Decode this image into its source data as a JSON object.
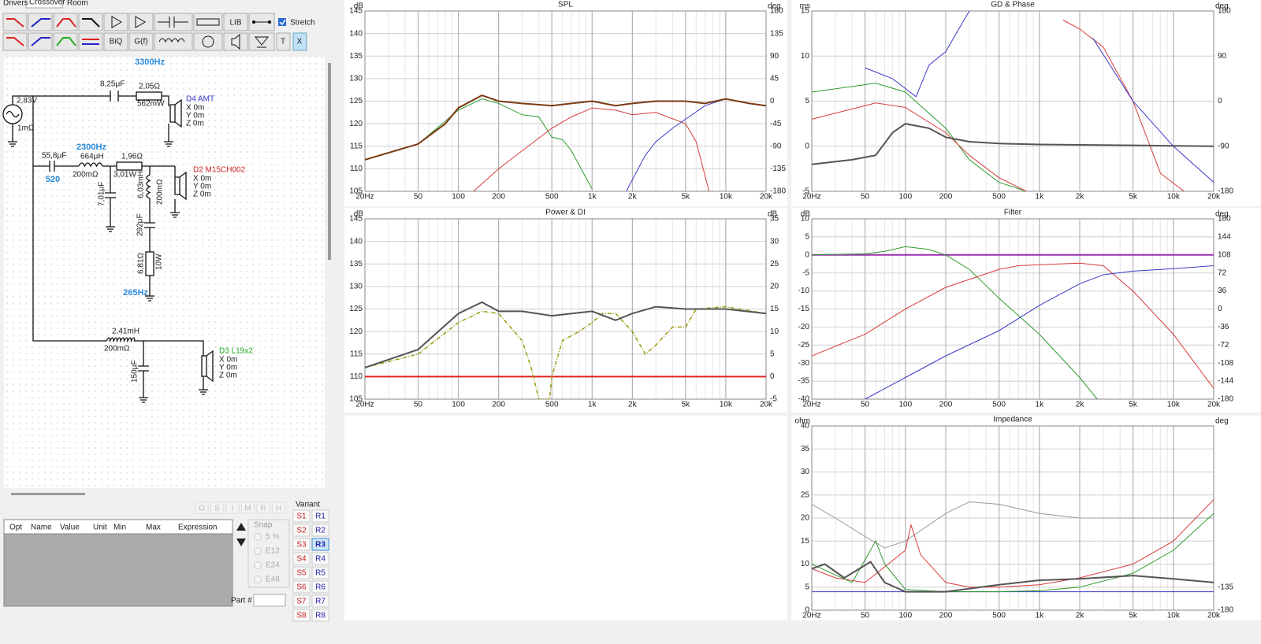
{
  "tabs": [
    "Drivers",
    "Crossover",
    "Room"
  ],
  "toolbar": {
    "lib": "LIB",
    "biq": "BiQ",
    "gf": "G(f)",
    "stretch": "Stretch",
    "t": "T",
    "x": "X"
  },
  "schematic": {
    "hz_top": "3300Hz",
    "source_v": "2,83V",
    "source_r": "1mΩ",
    "c1": "8,25μF",
    "r1": "2,05Ω",
    "r1_p": "562mW",
    "d4": {
      "name": "D4 AMT",
      "x": "X 0m",
      "y": "Y 0m",
      "z": "Z 0m"
    },
    "hz_mid": "2300Hz",
    "c2": "55,8μF",
    "l1": "664μH",
    "l1_r": "200mΩ",
    "r2": "1,96Ω",
    "r2_p": "3,01W",
    "q": "520",
    "c3": "7,01μF",
    "l2": "6,03mH",
    "l2_r": "200mΩ",
    "c4": "292μF",
    "r3": "6,81Ω",
    "r3_p": "10W",
    "d2": {
      "name": "D2 M15CH002",
      "x": "X 0m",
      "y": "Y 0m",
      "z": "Z 0m"
    },
    "hz_low": "265Hz",
    "l3": "2,41mH",
    "l3_r": "200mΩ",
    "c5": "150μF",
    "d3": {
      "name": "D3 L19x2",
      "x": "X 0m",
      "y": "Y 0m",
      "z": "Z 0m"
    }
  },
  "modes": [
    "O",
    "S",
    "I",
    "M",
    "R",
    "H"
  ],
  "optimizer": {
    "columns": [
      "Opt",
      "Name",
      "Value",
      "Unit",
      "Min",
      "Max",
      "Expression"
    ]
  },
  "snap": {
    "title": "Snap",
    "options": [
      "5 %",
      "E12",
      "E24",
      "E48"
    ]
  },
  "variant": {
    "title": "Variant",
    "s": [
      "S1",
      "S2",
      "S3",
      "S4",
      "S5",
      "S6",
      "S7",
      "S8"
    ],
    "r": [
      "R1",
      "R2",
      "R3",
      "R4",
      "R5",
      "R6",
      "R7",
      "R8"
    ],
    "selected": "R3"
  },
  "part": "Part #",
  "chart_data": [
    {
      "type": "line",
      "title": "SPL",
      "y_unit": "dB",
      "y2_unit": "deg",
      "xscale": "log",
      "grid": true,
      "xlim": [
        20,
        20000
      ],
      "xticks": [
        {
          "value": 20,
          "label": "20Hz"
        },
        50,
        100,
        200,
        500,
        {
          "value": 1000,
          "label": "1k"
        },
        {
          "value": 2000,
          "label": "2k"
        },
        {
          "value": 5000,
          "label": "5k"
        },
        {
          "value": 10000,
          "label": "10k"
        },
        {
          "value": 20000,
          "label": "20k"
        }
      ],
      "ylim": [
        105,
        145
      ],
      "yticks": [
        105,
        110,
        115,
        120,
        125,
        130,
        135,
        140,
        145
      ],
      "y2lim": [
        -180,
        180
      ],
      "y2ticks": [
        -180,
        -135,
        -90,
        -45,
        0,
        45,
        90,
        135,
        180
      ],
      "series": [
        {
          "color": "#2e9a2e",
          "width": 1,
          "x": [
            20,
            50,
            100,
            150,
            200,
            300,
            400,
            500,
            600,
            700,
            1000
          ],
          "values": [
            112,
            115.5,
            123,
            125.5,
            124.5,
            122,
            121.5,
            117,
            116.5,
            114,
            105.5
          ]
        },
        {
          "color": "#d83a3a",
          "width": 1,
          "x": [
            130,
            200,
            300,
            500,
            700,
            1000,
            1500,
            2000,
            3000,
            5000,
            6000,
            7500
          ],
          "values": [
            105,
            110,
            114,
            119,
            121.5,
            123.5,
            123,
            122,
            122.5,
            120,
            116,
            105
          ]
        },
        {
          "color": "#3a3ac8",
          "width": 1,
          "x": [
            1800,
            2500,
            3000,
            4000,
            5000,
            7000,
            10000,
            15000,
            20000
          ],
          "values": [
            105,
            113,
            116,
            119,
            121,
            124,
            125.5,
            124.5,
            124
          ]
        },
        {
          "color": "#7a3a12",
          "width": 2,
          "x": [
            20,
            50,
            80,
            100,
            150,
            200,
            300,
            500,
            700,
            1000,
            1500,
            2000,
            3000,
            5000,
            7000,
            10000,
            15000,
            20000
          ],
          "values": [
            112,
            115.5,
            120,
            123.5,
            126.3,
            125,
            124.5,
            124,
            124.5,
            125,
            124,
            124.5,
            125,
            125,
            124.5,
            125.5,
            124.5,
            124
          ]
        }
      ]
    },
    {
      "type": "line",
      "title": "GD & Phase",
      "y_unit": "ms",
      "y2_unit": "deg",
      "xscale": "log",
      "grid": true,
      "xlim": [
        20,
        20000
      ],
      "xticks": [
        {
          "value": 20,
          "label": "20Hz"
        },
        50,
        100,
        200,
        500,
        {
          "value": 1000,
          "label": "1k"
        },
        {
          "value": 2000,
          "label": "2k"
        },
        {
          "value": 5000,
          "label": "5k"
        },
        {
          "value": 10000,
          "label": "10k"
        },
        {
          "value": 20000,
          "label": "20k"
        }
      ],
      "ylim": [
        -5,
        15
      ],
      "yticks": [
        -5,
        0,
        5,
        10,
        15
      ],
      "y2lim": [
        -180,
        180
      ],
      "y2ticks": [
        -180,
        -90,
        0,
        90,
        180
      ],
      "series": [
        {
          "color": "#2e9a2e",
          "width": 1,
          "x": [
            20,
            60,
            100,
            200,
            300,
            500,
            800
          ],
          "values": [
            6,
            7,
            6,
            2,
            -1.5,
            -4,
            -5
          ]
        },
        {
          "color": "#d83a3a",
          "width": 1,
          "x": [
            20,
            60,
            100,
            200,
            300,
            500,
            800,
            1000,
            1500,
            2000,
            3000,
            5000,
            8000,
            12000
          ],
          "values": [
            3,
            4.8,
            4.3,
            1.5,
            -1,
            -3.5,
            -5,
            null,
            14,
            13,
            11,
            5,
            -3,
            -5
          ]
        },
        {
          "color": "#3a3ac8",
          "width": 1,
          "x": [
            50,
            80,
            120,
            150,
            200,
            250,
            300,
            1700,
            2500,
            5000,
            10000,
            20000
          ],
          "values": [
            8.7,
            7.5,
            5.5,
            9,
            10.5,
            13,
            15,
            null,
            12,
            5,
            0,
            -4
          ]
        },
        {
          "color": "#555555",
          "width": 2,
          "x": [
            20,
            40,
            60,
            80,
            100,
            150,
            200,
            300,
            500,
            1000,
            5000,
            20000
          ],
          "values": [
            -2,
            -1.5,
            -1,
            1.5,
            2.5,
            2,
            1,
            0.5,
            0.3,
            0.2,
            0.1,
            0
          ]
        }
      ]
    },
    {
      "type": "line",
      "title": "Power & DI",
      "y_unit": "dB",
      "y2_unit": "dB",
      "xscale": "log",
      "grid": true,
      "xlim": [
        20,
        20000
      ],
      "xticks": [
        {
          "value": 20,
          "label": "20Hz"
        },
        50,
        100,
        200,
        500,
        {
          "value": 1000,
          "label": "1k"
        },
        {
          "value": 2000,
          "label": "2k"
        },
        {
          "value": 5000,
          "label": "5k"
        },
        {
          "value": 10000,
          "label": "10k"
        },
        {
          "value": 20000,
          "label": "20k"
        }
      ],
      "ylim": [
        105,
        145
      ],
      "yticks": [
        105,
        110,
        115,
        120,
        125,
        130,
        135,
        140,
        145
      ],
      "y2lim": [
        -5,
        35
      ],
      "y2ticks": [
        -5,
        0,
        5,
        10,
        15,
        20,
        25,
        30,
        35
      ],
      "series": [
        {
          "color": "#e02020",
          "width": 2,
          "x": [
            20,
            20000
          ],
          "values": [
            110,
            110
          ]
        },
        {
          "color": "#9a9a10",
          "width": 1.5,
          "dash": true,
          "x": [
            20,
            50,
            100,
            150,
            200,
            300,
            350,
            400,
            480,
            500,
            600,
            800,
            1000,
            1200,
            1500,
            2000,
            2500,
            3000,
            4000,
            5000,
            6000,
            10000,
            20000
          ],
          "values": [
            112,
            115,
            122,
            124.5,
            124,
            118,
            112,
            105,
            105,
            110,
            118,
            120,
            122,
            124,
            124,
            120,
            115,
            117,
            121,
            121,
            125,
            125.5,
            124
          ]
        },
        {
          "color": "#555555",
          "width": 2,
          "x": [
            20,
            50,
            100,
            150,
            200,
            300,
            500,
            700,
            1000,
            1500,
            2000,
            3000,
            5000,
            10000,
            20000
          ],
          "values": [
            112,
            116,
            124,
            126.5,
            124.5,
            124.5,
            123.5,
            124,
            124.5,
            122.5,
            124,
            125.5,
            125,
            125,
            124
          ]
        }
      ]
    },
    {
      "type": "line",
      "title": "Filter",
      "y_unit": "dB",
      "y2_unit": "deg",
      "xscale": "log",
      "grid": true,
      "xlim": [
        20,
        20000
      ],
      "xticks": [
        {
          "value": 20,
          "label": "20Hz"
        },
        50,
        100,
        200,
        500,
        {
          "value": 1000,
          "label": "1k"
        },
        {
          "value": 2000,
          "label": "2k"
        },
        {
          "value": 5000,
          "label": "5k"
        },
        {
          "value": 10000,
          "label": "10k"
        },
        {
          "value": 20000,
          "label": "20k"
        }
      ],
      "ylim": [
        -40,
        10
      ],
      "yticks": [
        -40,
        -35,
        -30,
        -25,
        -20,
        -15,
        -10,
        -5,
        0,
        5,
        10
      ],
      "y2lim": [
        -180,
        180
      ],
      "y2ticks": [
        -180,
        -144,
        -108,
        -72,
        -36,
        0,
        36,
        72,
        108,
        144,
        180
      ],
      "series": [
        {
          "color": "#9a30b0",
          "width": 2,
          "x": [
            20,
            20000
          ],
          "values": [
            0,
            0
          ]
        },
        {
          "color": "#2e9a2e",
          "width": 1,
          "x": [
            20,
            50,
            70,
            100,
            150,
            200,
            300,
            500,
            1000,
            2000,
            2700
          ],
          "values": [
            0,
            0.3,
            1,
            2.3,
            1.5,
            0,
            -4,
            -12,
            -22,
            -34,
            -40
          ]
        },
        {
          "color": "#d83a3a",
          "width": 1,
          "x": [
            20,
            50,
            100,
            200,
            500,
            700,
            1000,
            2000,
            3000,
            5000,
            10000,
            20000
          ],
          "values": [
            -28,
            -22,
            -15,
            -9,
            -4,
            -3,
            -2.7,
            -2.3,
            -3,
            -10,
            -22,
            -37
          ]
        },
        {
          "color": "#3a3ac8",
          "width": 1,
          "x": [
            50,
            100,
            200,
            500,
            1000,
            2000,
            3000,
            5000,
            10000,
            20000
          ],
          "values": [
            -40,
            -34,
            -28,
            -21,
            -14,
            -8,
            -5.5,
            -4.5,
            -3.8,
            -3
          ]
        }
      ]
    },
    {
      "type": "line",
      "title": "Impedance",
      "y_unit": "ohm",
      "y2_unit": "deg",
      "xscale": "log",
      "grid": true,
      "xlim": [
        20,
        20000
      ],
      "xticks": [
        {
          "value": 20,
          "label": "20Hz"
        },
        50,
        100,
        200,
        500,
        {
          "value": 1000,
          "label": "1k"
        },
        {
          "value": 2000,
          "label": "2k"
        },
        {
          "value": 5000,
          "label": "5k"
        },
        {
          "value": 10000,
          "label": "10k"
        },
        {
          "value": 20000,
          "label": "20k"
        }
      ],
      "ylim": [
        0,
        40
      ],
      "yticks": [
        0,
        5,
        10,
        15,
        20,
        25,
        30,
        35,
        40
      ],
      "y2lim": [
        -180,
        180
      ],
      "y2ticks": [
        -180,
        -135
      ],
      "series": [
        {
          "color": "#3a3ac8",
          "width": 1,
          "x": [
            20,
            20000
          ],
          "values": [
            4,
            4
          ]
        },
        {
          "color": "#999999",
          "width": 1,
          "x": [
            20,
            30,
            50,
            70,
            100,
            200,
            300,
            500,
            1000,
            2000,
            5000,
            20000
          ],
          "values": [
            23,
            20,
            16,
            13.5,
            15,
            21,
            23.5,
            23,
            21,
            20,
            20,
            20
          ]
        },
        {
          "color": "#d83a3a",
          "width": 1,
          "x": [
            20,
            30,
            50,
            100,
            110,
            130,
            200,
            300,
            500,
            1000,
            2000,
            5000,
            10000,
            20000
          ],
          "values": [
            9,
            7,
            6,
            13,
            18.5,
            12,
            6,
            5,
            5,
            5.5,
            7,
            10,
            15,
            24
          ]
        },
        {
          "color": "#2e9a2e",
          "width": 1,
          "x": [
            20,
            40,
            60,
            70,
            100,
            200,
            500,
            1000,
            2000,
            5000,
            10000,
            20000
          ],
          "values": [
            10,
            6,
            15,
            10,
            4.5,
            4,
            4,
            4.2,
            5,
            8,
            13,
            21
          ]
        },
        {
          "color": "#555555",
          "width": 2,
          "x": [
            20,
            25,
            35,
            55,
            70,
            100,
            200,
            500,
            1000,
            2000,
            5000,
            10000,
            20000
          ],
          "values": [
            9,
            10,
            7,
            10.5,
            6,
            4,
            4,
            5.5,
            6.5,
            6.8,
            7.5,
            6.8,
            6
          ]
        }
      ]
    }
  ]
}
